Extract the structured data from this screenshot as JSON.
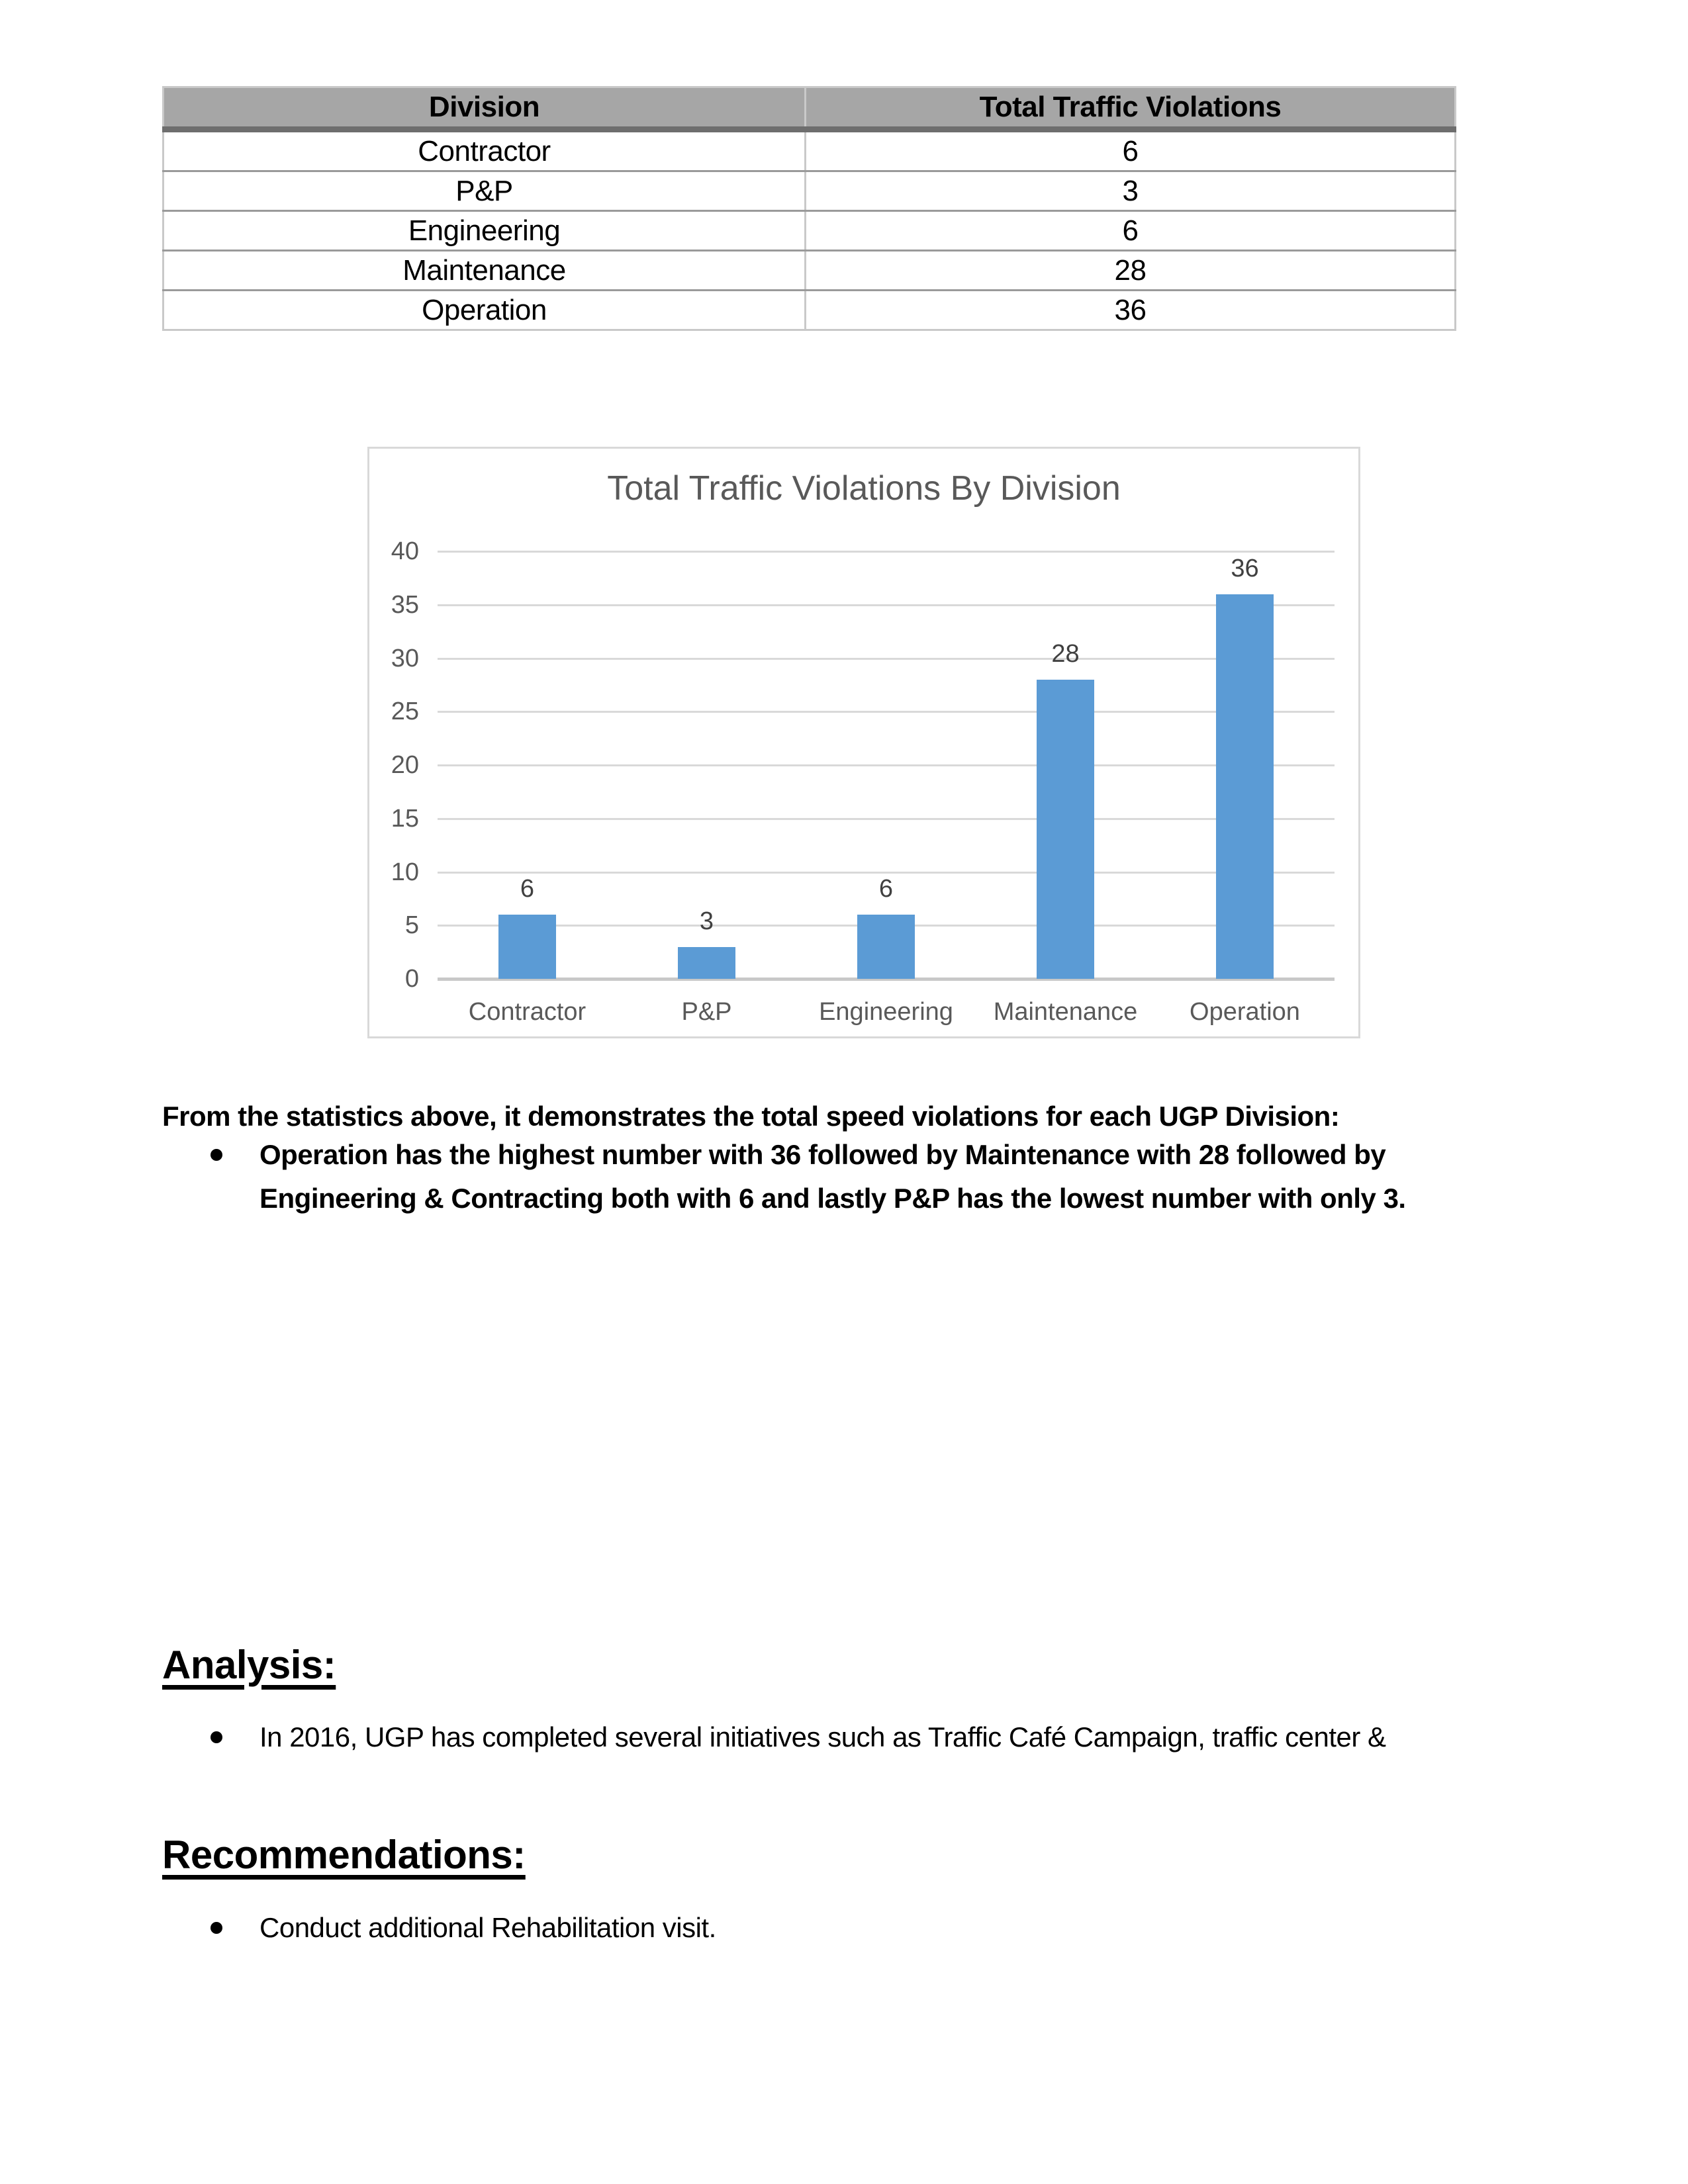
{
  "table": {
    "headers": [
      "Division",
      "Total Traffic Violations"
    ],
    "rows": [
      [
        "Contractor",
        "6"
      ],
      [
        "P&P",
        "3"
      ],
      [
        "Engineering",
        "6"
      ],
      [
        "Maintenance",
        "28"
      ],
      [
        "Operation",
        "36"
      ]
    ]
  },
  "chart_data": {
    "type": "bar",
    "title": "Total Traffic Violations By Division",
    "categories": [
      "Contractor",
      "P&P",
      "Engineering",
      "Maintenance",
      "Operation"
    ],
    "values": [
      6,
      3,
      6,
      28,
      36
    ],
    "xlabel": "",
    "ylabel": "",
    "ylim": [
      0,
      40
    ],
    "ytick_interval": 5,
    "grid": true,
    "legend": "none",
    "bar_color": "#5b9bd5",
    "gridline_color": "#d9d9d9",
    "axis_label_color": "#595959",
    "data_label_color": "#404040",
    "title_color": "#595959"
  },
  "prose": {
    "intro": "From the statistics above, it demonstrates the total speed violations for each UGP Division:",
    "intro_bullet": "Operation has the highest number with 36 followed by Maintenance with 28 followed by Engineering & Contracting both with 6 and lastly P&P has the lowest number with only 3."
  },
  "sections": {
    "analysis": {
      "heading": "Analysis:",
      "bullet": "In 2016, UGP has completed several initiatives such as Traffic Café Campaign, traffic center &"
    },
    "recommendations": {
      "heading": "Recommendations:",
      "bullet": "Conduct additional Rehabilitation visit."
    }
  },
  "colors": {
    "table_header_bg": "#a6a6a6",
    "page_bg": "#ffffff"
  }
}
